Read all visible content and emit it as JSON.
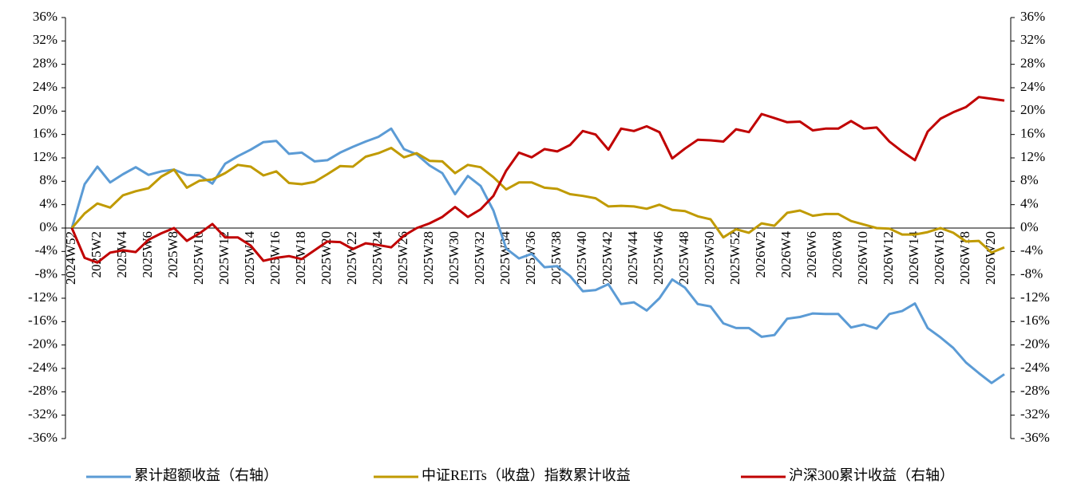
{
  "chart_data": {
    "type": "line",
    "categories": [
      "2024W52",
      null,
      "2025W2",
      null,
      "2025W4",
      null,
      "2025W6",
      null,
      "2025W8",
      null,
      "2025W10",
      null,
      "2025W12",
      null,
      "2025W14",
      null,
      "2025W16",
      null,
      "2025W18",
      null,
      "2025W20",
      null,
      "2025W22",
      null,
      "2025W24",
      null,
      "2025W26",
      null,
      "2025W28",
      null,
      "2025W30",
      null,
      "2025W32",
      null,
      "2025W34",
      null,
      "2025W36",
      null,
      "2025W38",
      null,
      "2025W40",
      null,
      "2025W42",
      null,
      "2025W44",
      null,
      "2025W46",
      null,
      "2025W48",
      null,
      "2025W50",
      null,
      "2025W52",
      null,
      "2026W2",
      null,
      "2026W4",
      null,
      "2026W6",
      null,
      "2026W8",
      null,
      "2026W10",
      null,
      "2026W12",
      null,
      "2026W14",
      null,
      "2026W16",
      null,
      "2026W18",
      null,
      "2026W20",
      null
    ],
    "series": [
      {
        "name": "累计超额收益（右轴）",
        "color": "#5b9bd5",
        "axis": "y2",
        "values": [
          0,
          7.5,
          10.5,
          7.8,
          9.2,
          10.4,
          9.1,
          9.7,
          10.0,
          9.1,
          9.0,
          7.6,
          11.0,
          12.3,
          13.4,
          14.7,
          14.9,
          12.7,
          12.9,
          11.4,
          11.6,
          12.9,
          13.9,
          14.8,
          15.6,
          17.0,
          13.5,
          12.6,
          10.7,
          9.4,
          5.8,
          8.9,
          7.2,
          3.0,
          -3.5,
          -5.2,
          -4.4,
          -6.7,
          -6.5,
          -8.2,
          -10.8,
          -10.6,
          -9.6,
          -13.0,
          -12.7,
          -14.1,
          -12.0,
          -8.8,
          -10.2,
          -13.0,
          -13.4,
          -16.3,
          -17.1,
          -17.1,
          -18.6,
          -18.3,
          -15.5,
          -15.2,
          -14.6,
          -14.7,
          -14.7,
          -17.0,
          -16.5,
          -17.2,
          -14.7,
          -14.2,
          -12.9,
          -17.1,
          -18.7,
          -20.5,
          -23.0,
          -24.8,
          -26.5,
          -25.0
        ]
      },
      {
        "name": "中证REITs（收盘）指数累计收益",
        "color": "#c09a00",
        "values": [
          0,
          2.5,
          4.2,
          3.5,
          5.6,
          6.3,
          6.8,
          8.8,
          10.0,
          6.9,
          8.1,
          8.3,
          9.4,
          10.8,
          10.5,
          9.0,
          9.7,
          7.7,
          7.5,
          7.9,
          9.2,
          10.6,
          10.5,
          12.2,
          12.8,
          13.7,
          12.1,
          12.8,
          11.5,
          11.4,
          9.4,
          10.8,
          10.4,
          8.7,
          6.6,
          7.8,
          7.8,
          6.9,
          6.7,
          5.8,
          5.5,
          5.1,
          3.7,
          3.8,
          3.7,
          3.3,
          4.0,
          3.1,
          2.9,
          2.0,
          1.5,
          -1.6,
          -0.2,
          -0.8,
          0.8,
          0.4,
          2.6,
          3.0,
          2.1,
          2.4,
          2.4,
          1.2,
          0.6,
          0.0,
          -0.1,
          -1.1,
          -1.1,
          -0.7,
          0.0,
          -0.8,
          -2.3,
          -2.2,
          -4.2,
          -3.3
        ]
      },
      {
        "name": "沪深300累计收益（右轴）",
        "color": "#c00000",
        "axis": "y2",
        "values": [
          0,
          -5.1,
          -5.9,
          -4.2,
          -3.8,
          -4.1,
          -2.0,
          -0.9,
          0.0,
          -2.2,
          -0.9,
          0.7,
          -1.6,
          -1.6,
          -3.0,
          -5.6,
          -5.1,
          -4.8,
          -5.3,
          -3.8,
          -2.3,
          -2.4,
          -3.6,
          -2.6,
          -2.9,
          -3.3,
          -1.3,
          0.0,
          0.8,
          1.9,
          3.6,
          1.9,
          3.2,
          5.5,
          9.8,
          12.9,
          12.1,
          13.5,
          13.1,
          14.2,
          16.6,
          16.0,
          13.4,
          17.0,
          16.6,
          17.4,
          16.4,
          11.9,
          13.6,
          15.1,
          15.0,
          14.8,
          16.9,
          16.4,
          19.5,
          18.8,
          18.1,
          18.2,
          16.7,
          17.0,
          17.0,
          18.3,
          17.0,
          17.2,
          14.8,
          13.1,
          11.6,
          16.5,
          18.7,
          19.8,
          20.7,
          22.4,
          22.1,
          21.8
        ]
      }
    ],
    "ylim": [
      -36,
      36
    ],
    "yticks": [
      {
        "value": -36,
        "label": "-36%"
      },
      {
        "value": -32,
        "label": "-32%"
      },
      {
        "value": -28,
        "label": "-28%"
      },
      {
        "value": -24,
        "label": "-24%"
      },
      {
        "value": -20,
        "label": "-20%"
      },
      {
        "value": -16,
        "label": "-16%"
      },
      {
        "value": -12,
        "label": "-12%"
      },
      {
        "value": -8,
        "label": "-8%"
      },
      {
        "value": -4,
        "label": "-4%"
      },
      {
        "value": 0,
        "label": "0%"
      },
      {
        "value": 4,
        "label": "4%"
      },
      {
        "value": 8,
        "label": "8%"
      },
      {
        "value": 12,
        "label": "12%"
      },
      {
        "value": 16,
        "label": "16%"
      },
      {
        "value": 20,
        "label": "20%"
      },
      {
        "value": 24,
        "label": "24%"
      },
      {
        "value": 28,
        "label": "28%"
      },
      {
        "value": 32,
        "label": "32%"
      },
      {
        "value": 36,
        "label": "36%"
      }
    ],
    "y2lim": [
      -36,
      36
    ],
    "y2ticks": [
      {
        "value": -36,
        "label": "-36%"
      },
      {
        "value": -32,
        "label": "-32%"
      },
      {
        "value": -28,
        "label": "-28%"
      },
      {
        "value": -24,
        "label": "-24%"
      },
      {
        "value": -20,
        "label": "-20%"
      },
      {
        "value": -16,
        "label": "-16%"
      },
      {
        "value": -12,
        "label": "-12%"
      },
      {
        "value": -8,
        "label": "-8%"
      },
      {
        "value": -4,
        "label": "-4%"
      },
      {
        "value": 0,
        "label": "0%"
      },
      {
        "value": 4,
        "label": "4%"
      },
      {
        "value": 8,
        "label": "8%"
      },
      {
        "value": 12,
        "label": "12%"
      },
      {
        "value": 16,
        "label": "16%"
      },
      {
        "value": 20,
        "label": "20%"
      },
      {
        "value": 24,
        "label": "24%"
      },
      {
        "value": 28,
        "label": "28%"
      },
      {
        "value": 32,
        "label": "32%"
      },
      {
        "value": 36,
        "label": "36%"
      }
    ],
    "grid": false,
    "legend": "bottom"
  }
}
